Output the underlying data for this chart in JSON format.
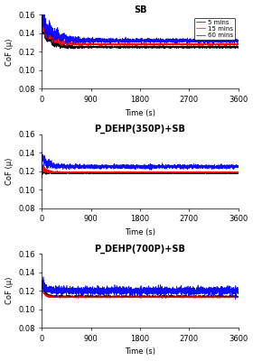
{
  "titles": [
    "SB",
    "P_DEHP(350P)+SB",
    "P_DEHP(700P)+SB"
  ],
  "ylabel": "CoF (μ)",
  "xlabel": "Time (s)",
  "ylim": [
    0.08,
    0.16
  ],
  "yticks": [
    0.08,
    0.1,
    0.12,
    0.14,
    0.16
  ],
  "xticks": [
    0,
    900,
    1800,
    2700,
    3600
  ],
  "legend_labels": [
    "5 mins",
    "15 mins",
    "60 mins"
  ],
  "line_colors": [
    "black",
    "red",
    "blue"
  ],
  "subplots": [
    {
      "title": "SB",
      "traces": [
        {
          "peak": 0.148,
          "dip": 0.115,
          "final": 0.125,
          "trans_time": 400,
          "noise_trans": 0.004,
          "noise_steady": 0.0005
        },
        {
          "peak": 0.15,
          "dip": 0.12,
          "final": 0.128,
          "trans_time": 500,
          "noise_trans": 0.004,
          "noise_steady": 0.0005
        },
        {
          "peak": 0.155,
          "dip": 0.128,
          "final": 0.132,
          "trans_time": 600,
          "noise_trans": 0.005,
          "noise_steady": 0.001
        }
      ]
    },
    {
      "title": "P_DEHP(350P)+SB",
      "traces": [
        {
          "peak": 0.122,
          "dip": 0.115,
          "final": 0.118,
          "trans_time": 200,
          "noise_trans": 0.002,
          "noise_steady": 0.0003
        },
        {
          "peak": 0.124,
          "dip": 0.116,
          "final": 0.119,
          "trans_time": 200,
          "noise_trans": 0.002,
          "noise_steady": 0.0003
        },
        {
          "peak": 0.135,
          "dip": 0.122,
          "final": 0.125,
          "trans_time": 300,
          "noise_trans": 0.003,
          "noise_steady": 0.001
        }
      ]
    },
    {
      "title": "P_DEHP(700P)+SB",
      "traces": [
        {
          "peak": 0.124,
          "dip": 0.114,
          "final": 0.114,
          "trans_time": 150,
          "noise_trans": 0.002,
          "noise_steady": 0.0003
        },
        {
          "peak": 0.122,
          "dip": 0.112,
          "final": 0.113,
          "trans_time": 150,
          "noise_trans": 0.001,
          "noise_steady": 0.0003
        },
        {
          "peak": 0.128,
          "dip": 0.118,
          "final": 0.12,
          "trans_time": 200,
          "noise_trans": 0.003,
          "noise_steady": 0.002
        }
      ]
    }
  ]
}
